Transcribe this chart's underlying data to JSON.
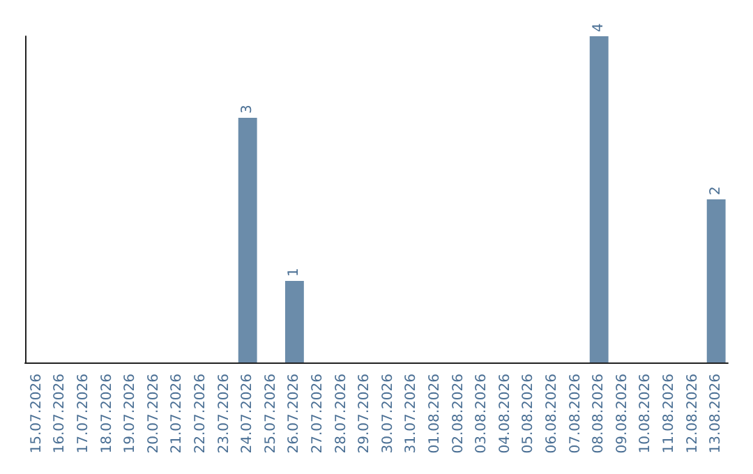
{
  "chart_data": {
    "type": "bar",
    "categories": [
      "15.07.2026",
      "16.07.2026",
      "17.07.2026",
      "18.07.2026",
      "19.07.2026",
      "20.07.2026",
      "21.07.2026",
      "22.07.2026",
      "23.07.2026",
      "24.07.2026",
      "25.07.2026",
      "26.07.2026",
      "27.07.2026",
      "28.07.2026",
      "29.07.2026",
      "30.07.2026",
      "31.07.2026",
      "01.08.2026",
      "02.08.2026",
      "03.08.2026",
      "04.08.2026",
      "05.08.2026",
      "06.08.2026",
      "07.08.2026",
      "08.08.2026",
      "09.08.2026",
      "10.08.2026",
      "11.08.2026",
      "12.08.2026",
      "13.08.2026"
    ],
    "values": [
      0,
      0,
      0,
      0,
      0,
      0,
      0,
      0,
      0,
      3,
      0,
      1,
      0,
      0,
      0,
      0,
      0,
      0,
      0,
      0,
      0,
      0,
      0,
      0,
      4,
      0,
      0,
      0,
      0,
      2
    ],
    "value_labels": [
      null,
      null,
      null,
      null,
      null,
      null,
      null,
      null,
      null,
      "3",
      null,
      "1",
      null,
      null,
      null,
      null,
      null,
      null,
      null,
      null,
      null,
      null,
      null,
      null,
      "4",
      null,
      null,
      null,
      null,
      "2"
    ],
    "color": "#6b8caa",
    "tick_labels": "x"
  }
}
